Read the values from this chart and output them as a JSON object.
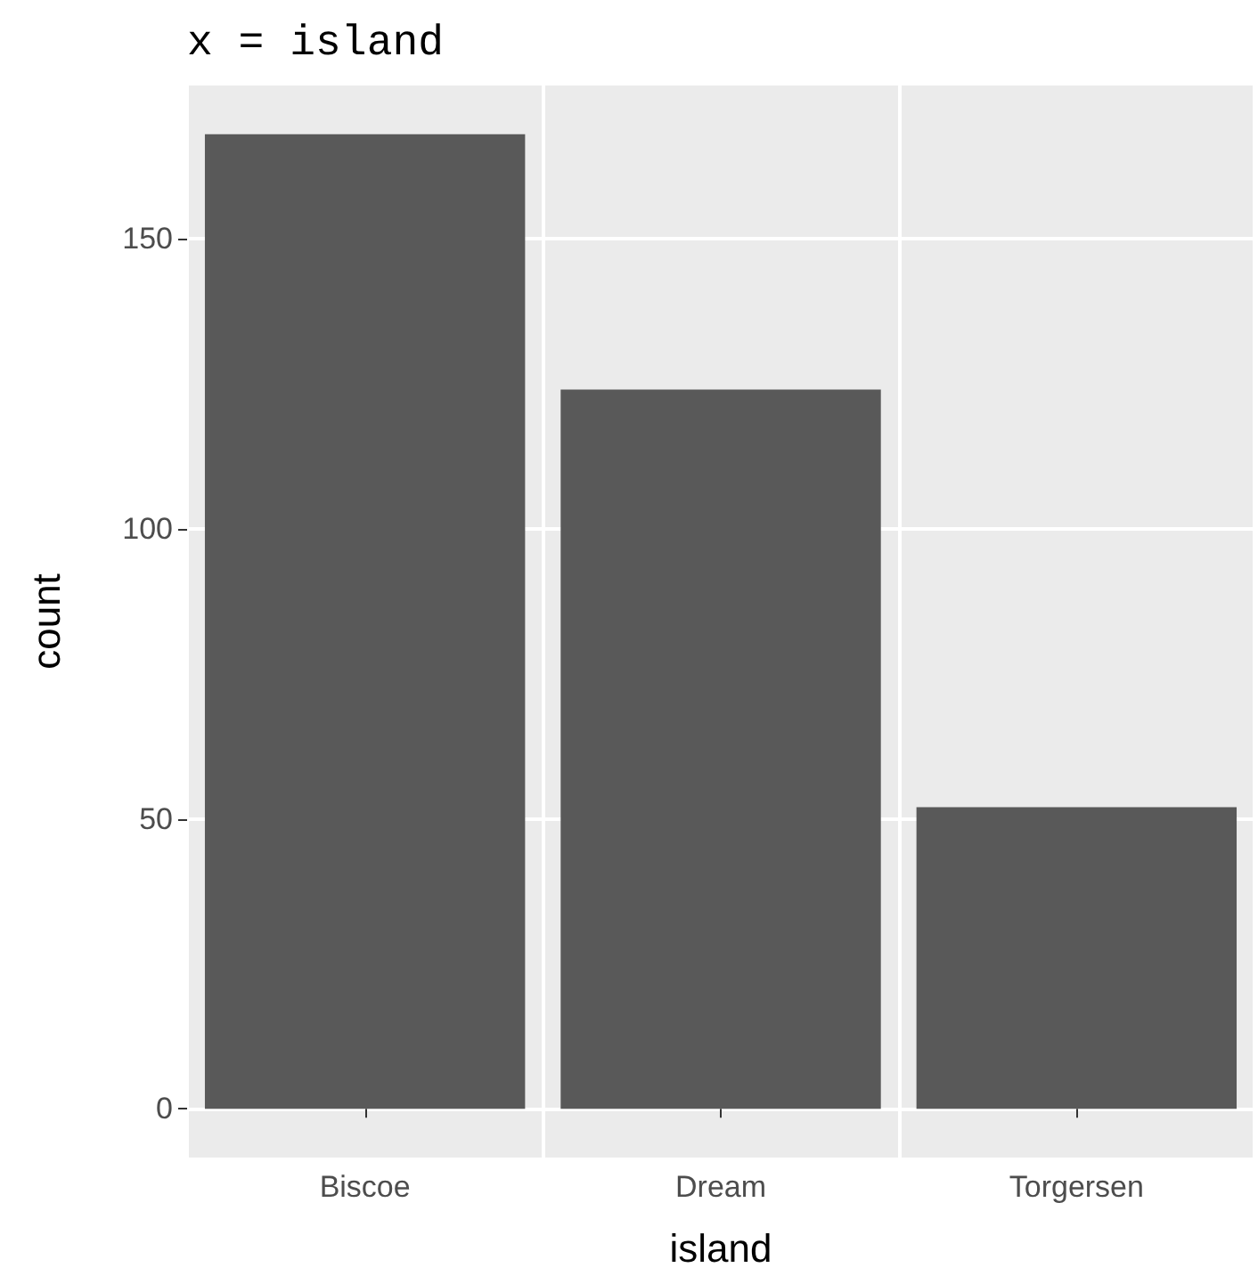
{
  "chart_data": {
    "type": "bar",
    "title": "x = island",
    "xlabel": "island",
    "ylabel": "count",
    "categories": [
      "Biscoe",
      "Dream",
      "Torgersen"
    ],
    "values": [
      168,
      124,
      52
    ],
    "color": "#595959",
    "ylim": [
      -8.4,
      176.4
    ],
    "yticks": [
      0,
      50,
      100,
      150
    ],
    "grid": true
  }
}
